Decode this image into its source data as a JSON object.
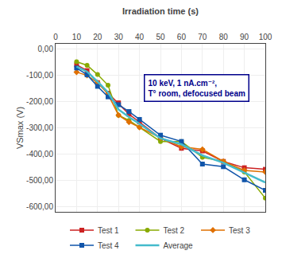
{
  "chart_data": {
    "type": "line",
    "x_label": "Irradiation time (s)",
    "y_label": "VSmax (V)",
    "x": [
      10,
      15,
      20,
      25,
      30,
      35,
      40,
      50,
      60,
      70,
      80,
      90,
      100
    ],
    "series": [
      {
        "name": "Test 1",
        "color": "#cc2222",
        "marker": "square",
        "values": [
          -60,
          -82,
          -128,
          -168,
          -205,
          -248,
          -278,
          -340,
          -378,
          -388,
          -428,
          -452,
          -458
        ]
      },
      {
        "name": "Test 2",
        "color": "#88aa00",
        "marker": "circle",
        "values": [
          -48,
          -62,
          -97,
          -138,
          -252,
          -272,
          -298,
          -352,
          -352,
          -412,
          -428,
          -468,
          -568
        ]
      },
      {
        "name": "Test 3",
        "color": "#e07000",
        "marker": "diamond",
        "values": [
          -88,
          -100,
          -128,
          -172,
          -252,
          -278,
          -298,
          -338,
          -372,
          -382,
          -428,
          -462,
          -468
        ]
      },
      {
        "name": "Test 4",
        "color": "#1155aa",
        "marker": "square",
        "values": [
          -72,
          -98,
          -142,
          -182,
          -212,
          -238,
          -268,
          -328,
          -352,
          -438,
          -448,
          -498,
          -538
        ]
      },
      {
        "name": "Average",
        "color": "#44bbcc",
        "values": [
          -67,
          -86,
          -124,
          -165,
          -230,
          -259,
          -285,
          -340,
          -363,
          -405,
          -433,
          -470,
          -508
        ]
      }
    ],
    "xlim": [
      0,
      100
    ],
    "xticks": [
      0,
      10,
      20,
      30,
      40,
      50,
      60,
      70,
      80,
      90,
      100
    ],
    "ylim": [
      -620,
      20
    ],
    "yticks": [
      {
        "value": 0,
        "label": "0,00"
      },
      {
        "value": -100,
        "label": "-100,00"
      },
      {
        "value": -200,
        "label": "-200,00"
      },
      {
        "value": -300,
        "label": "-300,00"
      },
      {
        "value": -400,
        "label": "-400,00"
      },
      {
        "value": -500,
        "label": "-500,00"
      },
      {
        "value": -600,
        "label": "-600,00"
      }
    ],
    "annotations": [
      {
        "text": "10 keV, 1 nA.cm⁻²,\nT° room, defocused beam",
        "color": "#00008B"
      }
    ],
    "grid": true,
    "legend": "bottom"
  }
}
